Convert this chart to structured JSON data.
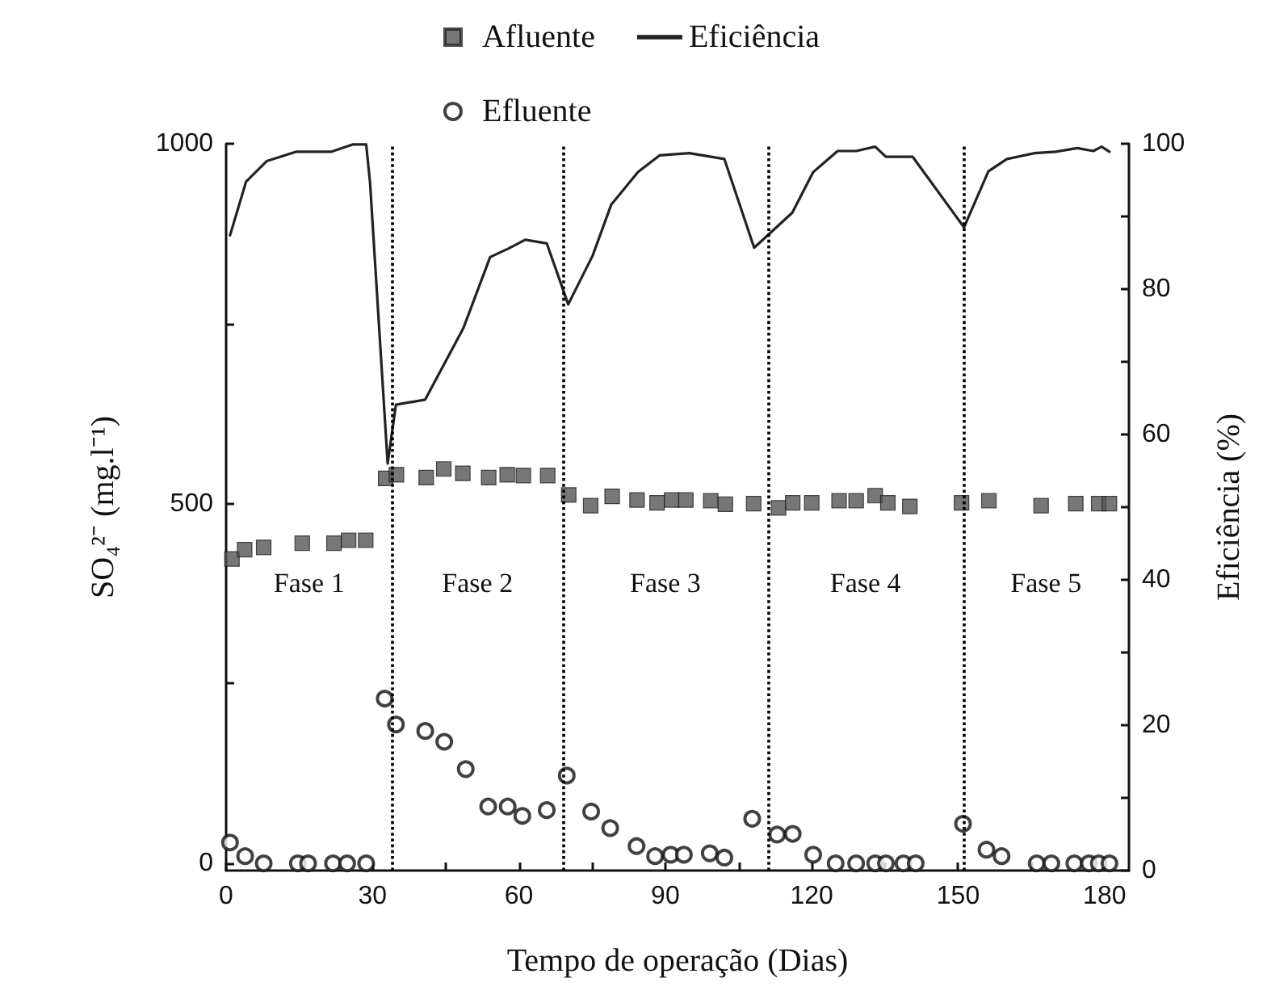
{
  "chart_data": {
    "type": "scatter",
    "xlabel": "Tempo de operação (Dias)",
    "ylabel": "SO₄²⁻ (mg.l⁻¹)",
    "y2label": "Eficiência (%)",
    "xlim": [
      0,
      185
    ],
    "xticks": [
      0,
      {
        "value": 15,
        "label": null
      },
      30,
      {
        "value": 45,
        "label": null
      },
      60,
      {
        "value": 75,
        "label": null
      },
      90,
      {
        "value": 105,
        "label": null
      },
      120,
      {
        "value": 135,
        "label": null
      },
      150,
      {
        "value": 165,
        "label": null
      },
      180
    ],
    "ylim": [
      -10,
      1000
    ],
    "yticks": [
      0,
      {
        "value": 250,
        "label": null
      },
      500,
      {
        "value": 750,
        "label": null
      },
      1000
    ],
    "y2lim": [
      0,
      100
    ],
    "y2ticks": [
      0,
      {
        "value": 10,
        "label": null
      },
      20,
      {
        "value": 30,
        "label": null
      },
      40,
      {
        "value": 50,
        "label": null
      },
      60,
      {
        "value": 70,
        "label": null
      },
      80,
      {
        "value": 90,
        "label": null
      },
      100
    ],
    "grid": false,
    "legend": "top",
    "series": [
      {
        "name": "Afluente",
        "marker": "square",
        "color": "#555555",
        "x": [
          1.2,
          3.8,
          7.7,
          15.6,
          22.1,
          25.1,
          28.6,
          32.7,
          34.9,
          41,
          44.6,
          48.5,
          53.8,
          57.6,
          60.9,
          65.9,
          70.2,
          74.7,
          79.1,
          84.2,
          88.3,
          91.3,
          94.2,
          99.3,
          102.3,
          108.1,
          113.2,
          116.1,
          120,
          125.6,
          129.1,
          133,
          135.6,
          140.1,
          150.7,
          156.3,
          167,
          174.1,
          178.8,
          181
        ],
        "values": [
          423,
          436,
          439,
          445,
          445,
          449,
          449,
          535,
          540,
          536,
          548,
          542,
          536,
          540,
          539,
          539,
          512,
          497,
          510,
          505,
          501,
          505,
          505,
          504,
          499,
          500,
          494,
          501,
          501,
          504,
          504,
          511,
          501,
          496,
          501,
          504,
          497,
          500,
          500,
          500
        ]
      },
      {
        "name": "Eficiência",
        "type": "line",
        "axis": "y2",
        "marker": "none",
        "line_style": "solid",
        "color": "#222222",
        "x": [
          0.8,
          4.1,
          8.3,
          14.3,
          21.5,
          25.9,
          28.7,
          29.5,
          33.1,
          34.8,
          40.8,
          48.6,
          54.1,
          57.9,
          61.3,
          65.7,
          70.1,
          75.1,
          78.9,
          84.4,
          88.8,
          94.9,
          102.1,
          108.2,
          116,
          120.3,
          125.3,
          129.1,
          133,
          135.2,
          140.7,
          151.2,
          156.2,
          160,
          165.6,
          170,
          174.4,
          177.7,
          179.4,
          181
        ],
        "values": [
          87.4,
          94.8,
          97.6,
          98.9,
          98.9,
          99.9,
          99.9,
          94.6,
          56,
          64.1,
          64.8,
          74.6,
          84.4,
          85.6,
          86.8,
          86.3,
          77.9,
          84.6,
          91.6,
          96.1,
          98.4,
          98.7,
          97.9,
          85.7,
          90.5,
          96.1,
          99,
          99,
          99.6,
          98.2,
          98.2,
          88.5,
          96.2,
          97.9,
          98.7,
          98.9,
          99.4,
          99,
          99.6,
          98.9
        ]
      },
      {
        "name": "Efluente",
        "marker": "circle",
        "color": "#111111",
        "x": [
          0.8,
          3.9,
          7.7,
          14.7,
          16.8,
          21.9,
          24.8,
          28.7,
          32.5,
          34.8,
          40.8,
          44.7,
          49.1,
          53.7,
          57.7,
          60.7,
          65.7,
          69.8,
          74.8,
          78.7,
          84.1,
          87.9,
          91.1,
          93.8,
          99.1,
          102.1,
          107.8,
          112.9,
          116.1,
          120.3,
          124.9,
          129.1,
          133,
          135.2,
          138.8,
          141.3,
          151,
          155.8,
          158.9,
          166.1,
          169.1,
          173.8,
          176.8,
          178.8,
          181
        ],
        "values": [
          29,
          10,
          0,
          0,
          0,
          0,
          0,
          0,
          229,
          193,
          184,
          169,
          131,
          79,
          79,
          66,
          74,
          122,
          72,
          49,
          24,
          10,
          12,
          12,
          14,
          8,
          62,
          40,
          41,
          12,
          0,
          0,
          0,
          0,
          0,
          0,
          55,
          19,
          10,
          0,
          0,
          0,
          0,
          0,
          0
        ]
      }
    ],
    "ref_lines": [
      {
        "axis": "x",
        "value": 34,
        "line_style": "dotted",
        "color": "#000000"
      },
      {
        "axis": "x",
        "value": 69,
        "line_style": "dotted",
        "color": "#000000"
      },
      {
        "axis": "x",
        "value": 111,
        "line_style": "dotted",
        "color": "#000000"
      },
      {
        "axis": "x",
        "value": 151,
        "line_style": "dotted",
        "color": "#000000"
      }
    ],
    "annotations": [
      "Fase 1",
      "Fase 2",
      "Fase 3",
      "Fase 4",
      "Fase 5"
    ]
  }
}
